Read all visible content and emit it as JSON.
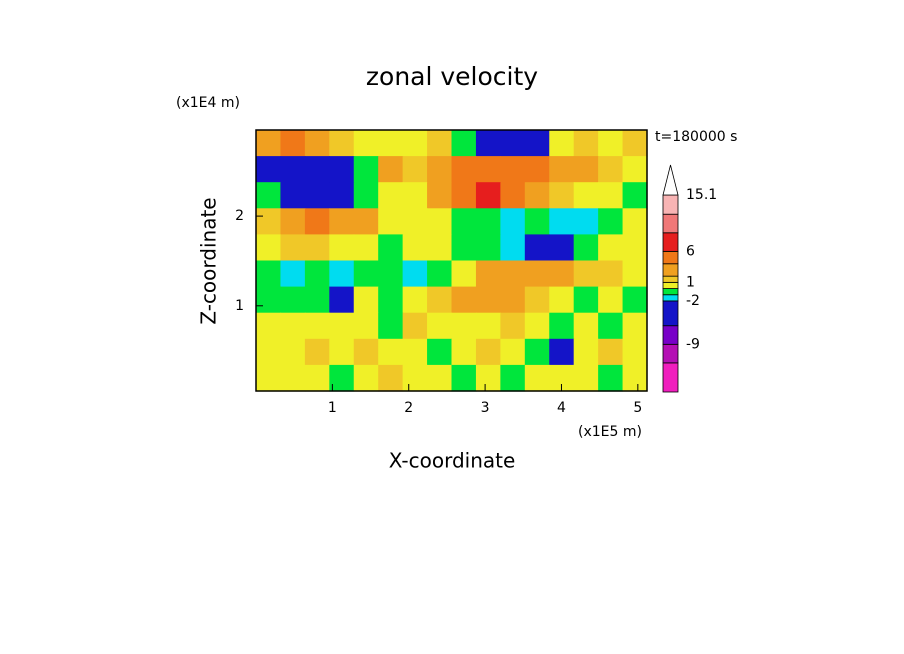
{
  "chart_data": {
    "type": "contour",
    "title": "zonal velocity",
    "x_label": "X-coordinate",
    "y_label": "Z-coordinate",
    "x_unit": "(x1E5 m)",
    "y_unit": "(x1E4 m)",
    "time_label": "t=180000 s",
    "xlim": [
      0,
      5.12
    ],
    "ylim": [
      0.05,
      2.96
    ],
    "xticks": [
      1,
      2,
      3,
      4,
      5
    ],
    "yticks": [
      1,
      2
    ],
    "field": [
      [
        2,
        4,
        3,
        1,
        0.5,
        0,
        0.5,
        1,
        -0.5,
        -3,
        -4,
        -3,
        0.5,
        1,
        0.5,
        1
      ],
      [
        -3,
        -5,
        -5,
        -3,
        -1,
        2,
        1,
        3,
        5,
        5,
        5,
        4,
        3,
        2,
        1,
        0.5
      ],
      [
        -1,
        -4,
        -5,
        -4,
        -1,
        0.5,
        0.5,
        2,
        4,
        6,
        5,
        3,
        1,
        0.5,
        0,
        -0.5
      ],
      [
        1,
        3,
        4,
        3,
        2,
        0.5,
        0,
        0.5,
        -0.5,
        -1,
        -1.5,
        -1,
        -1.5,
        -1.5,
        -0.5,
        0
      ],
      [
        0.5,
        1.5,
        1,
        0.5,
        0,
        -0.5,
        0.5,
        0,
        -1,
        -0.5,
        -1.5,
        -3,
        -4,
        -1,
        0,
        0.5
      ],
      [
        -1,
        -1.5,
        -1,
        -2,
        -1,
        -0.5,
        -1.5,
        -0.5,
        0.5,
        2,
        3,
        3,
        2,
        1,
        1,
        0.5
      ],
      [
        -0.5,
        -0.5,
        -0.5,
        -4,
        0.5,
        -0.5,
        0,
        1,
        2,
        3,
        2,
        1,
        0.5,
        -0.5,
        0,
        -0.5
      ],
      [
        0.5,
        0.5,
        0,
        0.5,
        0,
        -0.5,
        1,
        0.5,
        0,
        0.5,
        1,
        0.5,
        -0.5,
        0,
        -0.5,
        0
      ],
      [
        0,
        0.5,
        1,
        0.5,
        1.5,
        0.5,
        0,
        -0.5,
        0.5,
        1,
        0,
        -1,
        -3,
        0.5,
        1,
        0
      ],
      [
        0.5,
        0,
        0.5,
        -0.5,
        0,
        1,
        0.5,
        0,
        -0.5,
        0.5,
        -1,
        0,
        0.5,
        0,
        -0.5,
        0.5
      ]
    ],
    "levels": [
      -16.7,
      -12,
      -9,
      -6,
      -2,
      -1,
      0,
      1,
      2,
      4,
      6,
      9,
      12,
      15.1
    ],
    "colors": [
      "#f01ebe",
      "#b40fb4",
      "#7800c8",
      "#1414c8",
      "#00dcf0",
      "#00e63c",
      "#f0f028",
      "#f0c828",
      "#f0a020",
      "#f07818",
      "#e61e1e",
      "#f07878",
      "#f8b4b4",
      "#ffffff"
    ],
    "colorbar_ticks": [
      -9,
      -2,
      1,
      6,
      15.1
    ]
  }
}
